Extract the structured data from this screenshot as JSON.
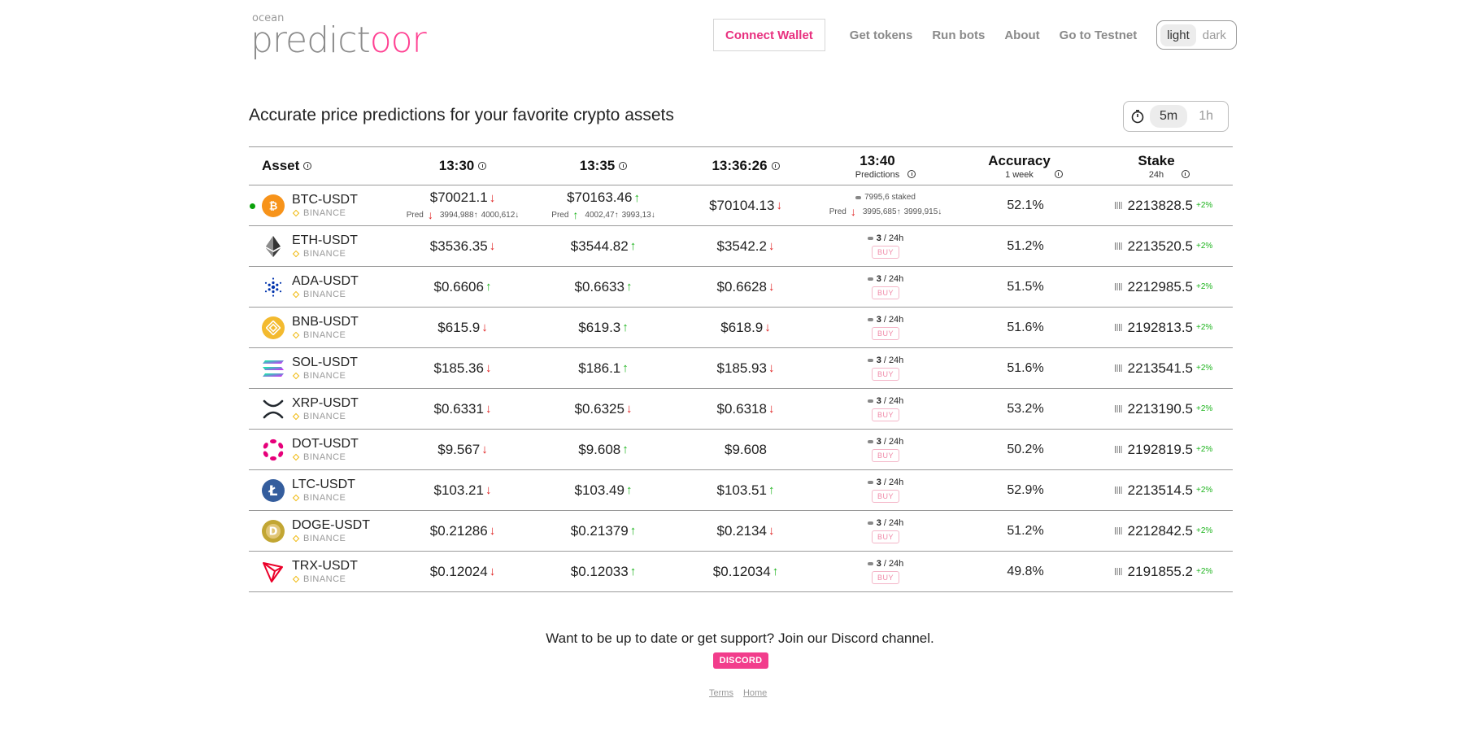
{
  "brand": {
    "small": "ocean",
    "main_gray": "predict",
    "main_pink": "oor",
    "accent": "#ff4092"
  },
  "nav": {
    "connect_label": "Connect Wallet",
    "links": [
      "Get tokens",
      "Run bots",
      "About",
      "Go to Testnet"
    ],
    "theme": {
      "light": "light",
      "dark": "dark",
      "selected": "light"
    }
  },
  "tagline": "Accurate price predictions for your favorite crypto assets",
  "interval": {
    "icon": "stopwatch-icon",
    "options": [
      "5m",
      "1h"
    ],
    "selected": "5m"
  },
  "table": {
    "headers": {
      "asset": "Asset",
      "t1": "13:30",
      "t2": "13:35",
      "t3": "13:36:26",
      "pred_title": "13:40",
      "pred_sub": "Predictions",
      "acc_title": "Accuracy",
      "acc_sub": "1 week",
      "stake_title": "Stake",
      "stake_sub": "24h"
    },
    "rows": [
      {
        "asset": "BTC-USDT",
        "exchange": "BINANCE",
        "icon": "btc-icon",
        "live": true,
        "p1": "$70021.1",
        "p1_dir": "down",
        "p2": "$70163.46",
        "p2_dir": "up",
        "p3": "$70104.13",
        "p3_dir": "down",
        "p1_pred": {
          "label": "Pred",
          "dir": "down",
          "up": "3994,988",
          "down": "4000,612"
        },
        "p2_pred": {
          "label": "Pred",
          "dir": "up",
          "up": "4002,47",
          "down": "3993,13"
        },
        "staked": "7995,6 staked",
        "pred_detail": {
          "label": "Pred",
          "dir": "down",
          "up": "3995,685",
          "down": "3999,915"
        },
        "accuracy": "52.1%",
        "stake": "2213828.5",
        "stake_change": "+2%"
      },
      {
        "asset": "ETH-USDT",
        "exchange": "BINANCE",
        "icon": "eth-icon",
        "p1": "$3536.35",
        "p1_dir": "down",
        "p2": "$3544.82",
        "p2_dir": "up",
        "p3": "$3542.2",
        "p3_dir": "down",
        "count": "3",
        "period": "/ 24h",
        "buy": "BUY",
        "accuracy": "51.2%",
        "stake": "2213520.5",
        "stake_change": "+2%"
      },
      {
        "asset": "ADA-USDT",
        "exchange": "BINANCE",
        "icon": "ada-icon",
        "p1": "$0.6606",
        "p1_dir": "up",
        "p2": "$0.6633",
        "p2_dir": "up",
        "p3": "$0.6628",
        "p3_dir": "down",
        "count": "3",
        "period": "/ 24h",
        "buy": "BUY",
        "accuracy": "51.5%",
        "stake": "2212985.5",
        "stake_change": "+2%"
      },
      {
        "asset": "BNB-USDT",
        "exchange": "BINANCE",
        "icon": "bnb-icon",
        "p1": "$615.9",
        "p1_dir": "down",
        "p2": "$619.3",
        "p2_dir": "up",
        "p3": "$618.9",
        "p3_dir": "down",
        "count": "3",
        "period": "/ 24h",
        "buy": "BUY",
        "accuracy": "51.6%",
        "stake": "2192813.5",
        "stake_change": "+2%"
      },
      {
        "asset": "SOL-USDT",
        "exchange": "BINANCE",
        "icon": "sol-icon",
        "p1": "$185.36",
        "p1_dir": "down",
        "p2": "$186.1",
        "p2_dir": "up",
        "p3": "$185.93",
        "p3_dir": "down",
        "count": "3",
        "period": "/ 24h",
        "buy": "BUY",
        "accuracy": "51.6%",
        "stake": "2213541.5",
        "stake_change": "+2%"
      },
      {
        "asset": "XRP-USDT",
        "exchange": "BINANCE",
        "icon": "xrp-icon",
        "p1": "$0.6331",
        "p1_dir": "down",
        "p2": "$0.6325",
        "p2_dir": "down",
        "p3": "$0.6318",
        "p3_dir": "down",
        "count": "3",
        "period": "/ 24h",
        "buy": "BUY",
        "accuracy": "53.2%",
        "stake": "2213190.5",
        "stake_change": "+2%"
      },
      {
        "asset": "DOT-USDT",
        "exchange": "BINANCE",
        "icon": "dot-icon",
        "p1": "$9.567",
        "p1_dir": "down",
        "p2": "$9.608",
        "p2_dir": "up",
        "p3": "$9.608",
        "p3_dir": "",
        "count": "3",
        "period": "/ 24h",
        "buy": "BUY",
        "accuracy": "50.2%",
        "stake": "2192819.5",
        "stake_change": "+2%"
      },
      {
        "asset": "LTC-USDT",
        "exchange": "BINANCE",
        "icon": "ltc-icon",
        "p1": "$103.21",
        "p1_dir": "down",
        "p2": "$103.49",
        "p2_dir": "up",
        "p3": "$103.51",
        "p3_dir": "up",
        "count": "3",
        "period": "/ 24h",
        "buy": "BUY",
        "accuracy": "52.9%",
        "stake": "2213514.5",
        "stake_change": "+2%"
      },
      {
        "asset": "DOGE-USDT",
        "exchange": "BINANCE",
        "icon": "doge-icon",
        "p1": "$0.21286",
        "p1_dir": "down",
        "p2": "$0.21379",
        "p2_dir": "up",
        "p3": "$0.2134",
        "p3_dir": "down",
        "count": "3",
        "period": "/ 24h",
        "buy": "BUY",
        "accuracy": "51.2%",
        "stake": "2212842.5",
        "stake_change": "+2%"
      },
      {
        "asset": "TRX-USDT",
        "exchange": "BINANCE",
        "icon": "trx-icon",
        "p1": "$0.12024",
        "p1_dir": "down",
        "p2": "$0.12033",
        "p2_dir": "up",
        "p3": "$0.12034",
        "p3_dir": "up",
        "count": "3",
        "period": "/ 24h",
        "buy": "BUY",
        "accuracy": "49.8%",
        "stake": "2191855.2",
        "stake_change": "+2%"
      }
    ]
  },
  "footer": {
    "text": "Want to be up to date or get support? Join our Discord channel.",
    "discord": "DISCORD",
    "links": [
      "Terms",
      "Home"
    ]
  }
}
